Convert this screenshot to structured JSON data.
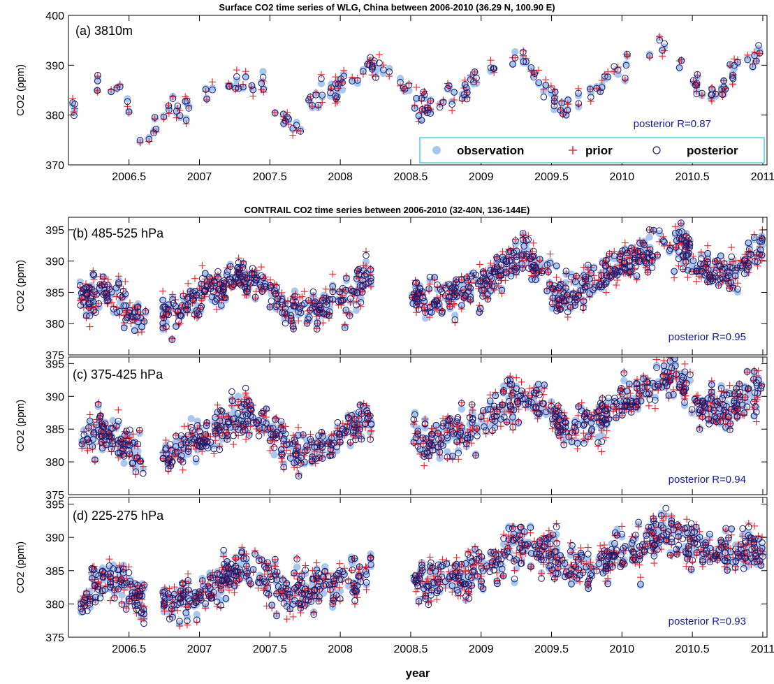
{
  "colors": {
    "observation": "#a8c8ee",
    "prior": "#e8202a",
    "posterior": "#1a1a6e",
    "stats": "#1a1aa0",
    "legend_border": "#33c8d8"
  },
  "legend": {
    "observation": "observation",
    "prior": "prior",
    "posterior": "posterior"
  },
  "xlabel": "year",
  "chart_data": [
    {
      "type": "scatter",
      "title": "Surface CO2 time series of WLG, China between 2006-2010 (36.29 N, 100.90 E)",
      "panel_label": "(a) 3810m",
      "ylabel": "CO2 (ppm)",
      "xlabel": "",
      "xlim": [
        2006.07,
        2011.03
      ],
      "ylim": [
        370,
        400
      ],
      "yticks": [
        370,
        380,
        390,
        400
      ],
      "xticks": [
        2006.5,
        2007,
        2007.5,
        2008,
        2008.5,
        2009,
        2009.5,
        2010,
        2010.5,
        2011
      ],
      "xtick_labels": [
        "2006.5",
        "2007",
        "2007.5",
        "2008",
        "2008.5",
        "2009",
        "2009.5",
        "2010",
        "2010.5",
        "2011"
      ],
      "stat": "posterior R=0.87",
      "legend": "bottom-right",
      "seed": 11,
      "n_points": 190,
      "trend": [
        [
          2006.1,
          382
        ],
        [
          2006.3,
          386.5
        ],
        [
          2006.45,
          385
        ],
        [
          2006.58,
          376
        ],
        [
          2006.8,
          381
        ],
        [
          2007.0,
          384
        ],
        [
          2007.3,
          387
        ],
        [
          2007.45,
          387
        ],
        [
          2007.55,
          381
        ],
        [
          2007.65,
          377
        ],
        [
          2007.85,
          383
        ],
        [
          2008.0,
          386
        ],
        [
          2008.25,
          390
        ],
        [
          2008.4,
          389
        ],
        [
          2008.55,
          381
        ],
        [
          2008.7,
          382
        ],
        [
          2008.9,
          386
        ],
        [
          2009.15,
          390
        ],
        [
          2009.3,
          391
        ],
        [
          2009.55,
          382
        ],
        [
          2009.7,
          383
        ],
        [
          2009.85,
          386
        ],
        [
          2010.1,
          390
        ],
        [
          2010.3,
          394
        ],
        [
          2010.42,
          392
        ],
        [
          2010.55,
          386
        ],
        [
          2010.65,
          384
        ],
        [
          2010.8,
          389
        ],
        [
          2011.0,
          393
        ]
      ],
      "gaps": [],
      "noise": {
        "spread": 1.3,
        "prior_dev": 0.9,
        "post_dev": 0.5
      }
    },
    {
      "type": "scatter",
      "title": "CONTRAIL CO2 time series between 2006-2010 (32-40N, 136-144E)",
      "panel_label": "(b) 485-525 hPa",
      "ylabel": "CO2 (ppm)",
      "xlabel": "",
      "xlim": [
        2006.07,
        2011.03
      ],
      "ylim": [
        375,
        397
      ],
      "yticks": [
        375,
        380,
        385,
        390,
        395
      ],
      "xticks": [],
      "xtick_labels": [],
      "stat": "posterior R=0.95",
      "legend": "",
      "seed": 23,
      "n_points": 760,
      "trend": [
        [
          2006.15,
          384
        ],
        [
          2006.3,
          385.5
        ],
        [
          2006.45,
          383
        ],
        [
          2006.6,
          379.5
        ],
        [
          2006.75,
          381
        ],
        [
          2007.0,
          384
        ],
        [
          2007.3,
          388
        ],
        [
          2007.45,
          386
        ],
        [
          2007.6,
          383
        ],
        [
          2007.75,
          381.5
        ],
        [
          2008.0,
          384
        ],
        [
          2008.2,
          388
        ],
        [
          2008.5,
          384
        ],
        [
          2008.6,
          383
        ],
        [
          2009.0,
          386
        ],
        [
          2009.3,
          391
        ],
        [
          2009.45,
          388
        ],
        [
          2009.55,
          384
        ],
        [
          2009.75,
          386
        ],
        [
          2010.0,
          389
        ],
        [
          2010.3,
          393
        ],
        [
          2010.45,
          392
        ],
        [
          2010.55,
          388
        ],
        [
          2010.75,
          388
        ],
        [
          2011.0,
          392
        ]
      ],
      "gaps": [
        [
          2006.62,
          2006.74
        ],
        [
          2008.22,
          2008.51
        ]
      ],
      "noise": {
        "spread": 1.4,
        "prior_dev": 0.8,
        "post_dev": 0.5
      }
    },
    {
      "type": "scatter",
      "title": "",
      "panel_label": "(c) 375-425 hPa",
      "ylabel": "CO2 (ppm)",
      "xlabel": "",
      "xlim": [
        2006.07,
        2011.03
      ],
      "ylim": [
        375,
        396
      ],
      "yticks": [
        375,
        380,
        385,
        390,
        395
      ],
      "xticks": [],
      "xtick_labels": [],
      "stat": "posterior R=0.94",
      "legend": "",
      "seed": 37,
      "n_points": 720,
      "trend": [
        [
          2006.15,
          383
        ],
        [
          2006.3,
          385
        ],
        [
          2006.45,
          383
        ],
        [
          2006.6,
          379.5
        ],
        [
          2006.75,
          380.5
        ],
        [
          2007.0,
          383
        ],
        [
          2007.3,
          387
        ],
        [
          2007.45,
          386
        ],
        [
          2007.6,
          382.5
        ],
        [
          2007.75,
          381.5
        ],
        [
          2008.0,
          384
        ],
        [
          2008.2,
          387
        ],
        [
          2008.5,
          384
        ],
        [
          2008.6,
          383
        ],
        [
          2009.0,
          386
        ],
        [
          2009.3,
          390
        ],
        [
          2009.45,
          388.5
        ],
        [
          2009.6,
          385
        ],
        [
          2009.8,
          386.5
        ],
        [
          2010.0,
          389
        ],
        [
          2010.3,
          393
        ],
        [
          2010.45,
          391
        ],
        [
          2010.55,
          388
        ],
        [
          2010.75,
          388
        ],
        [
          2011.0,
          390
        ]
      ],
      "gaps": [
        [
          2006.62,
          2006.74
        ],
        [
          2008.22,
          2008.51
        ]
      ],
      "noise": {
        "spread": 1.5,
        "prior_dev": 0.8,
        "post_dev": 0.5
      }
    },
    {
      "type": "scatter",
      "title": "",
      "panel_label": "(d) 225-275 hPa",
      "ylabel": "CO2 (ppm)",
      "xlabel": "year",
      "xlim": [
        2006.07,
        2011.03
      ],
      "ylim": [
        375,
        396
      ],
      "yticks": [
        375,
        380,
        385,
        390,
        395
      ],
      "xticks": [
        2006.5,
        2007,
        2007.5,
        2008,
        2008.5,
        2009,
        2009.5,
        2010,
        2010.5,
        2011
      ],
      "xtick_labels": [
        "2006.5",
        "2007",
        "2007.5",
        "2008",
        "2008.5",
        "2009",
        "2009.5",
        "2010",
        "2010.5",
        "2011"
      ],
      "stat": "posterior R=0.93",
      "legend": "",
      "seed": 53,
      "n_points": 760,
      "trend": [
        [
          2006.15,
          380.5
        ],
        [
          2006.3,
          383.5
        ],
        [
          2006.45,
          383.5
        ],
        [
          2006.6,
          380.5
        ],
        [
          2006.75,
          380
        ],
        [
          2007.0,
          381.5
        ],
        [
          2007.3,
          385.5
        ],
        [
          2007.45,
          384.5
        ],
        [
          2007.6,
          382.5
        ],
        [
          2007.75,
          381.5
        ],
        [
          2008.0,
          383
        ],
        [
          2008.2,
          384.5
        ],
        [
          2008.5,
          384
        ],
        [
          2008.6,
          383
        ],
        [
          2009.0,
          385
        ],
        [
          2009.3,
          388.5
        ],
        [
          2009.45,
          388
        ],
        [
          2009.6,
          385.5
        ],
        [
          2009.8,
          386
        ],
        [
          2010.0,
          387
        ],
        [
          2010.3,
          391
        ],
        [
          2010.45,
          390
        ],
        [
          2010.55,
          388
        ],
        [
          2010.75,
          388
        ],
        [
          2011.0,
          388.5
        ]
      ],
      "gaps": [
        [
          2006.62,
          2006.74
        ],
        [
          2008.22,
          2008.51
        ]
      ],
      "noise": {
        "spread": 1.6,
        "prior_dev": 0.8,
        "post_dev": 0.5
      }
    }
  ]
}
